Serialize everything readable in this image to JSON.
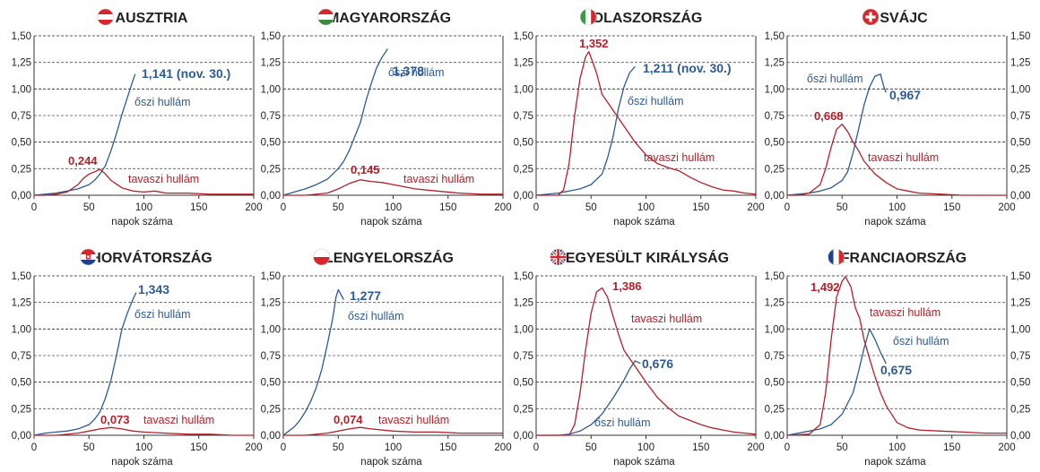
{
  "colors": {
    "autumn": "#2d5b94",
    "spring": "#b5202a",
    "grid": "#444444",
    "axis": "#333333"
  },
  "common": {
    "xlabel": "napok száma",
    "y_ticks": [
      "0,00",
      "0,25",
      "0,50",
      "0,75",
      "1,00",
      "1,25",
      "1,50"
    ],
    "x_ticks": [
      "0",
      "50",
      "100",
      "150",
      "200"
    ],
    "xlim": [
      0,
      200
    ],
    "ylim": [
      0,
      1.5
    ],
    "grid": "horizontal dashed"
  },
  "chart_data": [
    {
      "type": "line",
      "title": "AUSZTRIA",
      "flag_icon": "austria-flag-icon",
      "series": [
        {
          "name": "őszi hullám",
          "peak_label": "1,141 (nov. 30.)",
          "x": [
            0,
            10,
            20,
            30,
            40,
            50,
            55,
            60,
            65,
            70,
            75,
            80,
            85,
            90,
            92
          ],
          "y": [
            0.0,
            0.01,
            0.02,
            0.04,
            0.06,
            0.1,
            0.14,
            0.2,
            0.28,
            0.42,
            0.58,
            0.76,
            0.92,
            1.08,
            1.14
          ]
        },
        {
          "name": "tavaszi hullám",
          "peak_label": "0,244",
          "x": [
            0,
            10,
            20,
            30,
            40,
            45,
            50,
            55,
            60,
            65,
            70,
            80,
            90,
            100,
            110,
            120,
            140,
            160,
            180,
            200
          ],
          "y": [
            0.0,
            0.0,
            0.01,
            0.03,
            0.1,
            0.16,
            0.2,
            0.22,
            0.244,
            0.2,
            0.14,
            0.07,
            0.04,
            0.03,
            0.04,
            0.02,
            0.02,
            0.01,
            0.01,
            0.01
          ]
        }
      ]
    },
    {
      "type": "line",
      "title": "MAGYARORSZÁG",
      "flag_icon": "hungary-flag-icon",
      "series": [
        {
          "name": "őszi hullám",
          "peak_label": "1,378",
          "x": [
            0,
            10,
            20,
            30,
            40,
            50,
            55,
            60,
            65,
            70,
            75,
            80,
            85,
            90,
            95
          ],
          "y": [
            0.0,
            0.03,
            0.06,
            0.1,
            0.15,
            0.25,
            0.32,
            0.42,
            0.55,
            0.68,
            0.88,
            1.05,
            1.2,
            1.3,
            1.378
          ]
        },
        {
          "name": "tavaszi hullám",
          "peak_label": "0,145",
          "x": [
            0,
            20,
            40,
            50,
            60,
            70,
            80,
            90,
            100,
            110,
            120,
            140,
            160,
            180,
            200
          ],
          "y": [
            0.0,
            0.0,
            0.02,
            0.06,
            0.11,
            0.145,
            0.13,
            0.12,
            0.1,
            0.08,
            0.06,
            0.04,
            0.02,
            0.01,
            0.01
          ]
        }
      ]
    },
    {
      "type": "line",
      "title": "OLASZORSZÁG",
      "flag_icon": "italy-flag-icon",
      "series": [
        {
          "name": "őszi hullám",
          "peak_label": "1,211 (nov. 30.)",
          "x": [
            0,
            20,
            30,
            40,
            50,
            60,
            65,
            70,
            75,
            80,
            85,
            90
          ],
          "y": [
            0.0,
            0.02,
            0.04,
            0.06,
            0.1,
            0.2,
            0.35,
            0.55,
            0.82,
            1.02,
            1.15,
            1.211
          ]
        },
        {
          "name": "tavaszi hullám",
          "peak_label": "1,352",
          "x": [
            0,
            20,
            25,
            30,
            35,
            40,
            45,
            48,
            55,
            60,
            70,
            80,
            90,
            100,
            110,
            120,
            130,
            140,
            150,
            160,
            170,
            180,
            190,
            200
          ],
          "y": [
            0.0,
            0.0,
            0.05,
            0.3,
            0.75,
            1.1,
            1.3,
            1.352,
            1.15,
            0.95,
            0.8,
            0.65,
            0.5,
            0.38,
            0.3,
            0.26,
            0.23,
            0.17,
            0.12,
            0.08,
            0.05,
            0.04,
            0.02,
            0.01
          ]
        }
      ]
    },
    {
      "type": "line",
      "title": "SVÁJC",
      "flag_icon": "switzerland-flag-icon",
      "series": [
        {
          "name": "őszi hullám",
          "peak_label": "0,967",
          "x": [
            0,
            10,
            20,
            30,
            40,
            50,
            55,
            60,
            65,
            70,
            75,
            80,
            85,
            88,
            90
          ],
          "y": [
            0.0,
            0.01,
            0.02,
            0.04,
            0.07,
            0.14,
            0.22,
            0.4,
            0.62,
            0.85,
            1.02,
            1.12,
            1.14,
            1.02,
            0.967
          ]
        },
        {
          "name": "tavaszi hullám",
          "peak_label": "0,668",
          "x": [
            0,
            10,
            20,
            30,
            35,
            40,
            45,
            50,
            55,
            60,
            65,
            70,
            80,
            90,
            100,
            110,
            120,
            140,
            160,
            200
          ],
          "y": [
            0.0,
            0.0,
            0.02,
            0.1,
            0.25,
            0.45,
            0.62,
            0.668,
            0.6,
            0.5,
            0.42,
            0.32,
            0.2,
            0.12,
            0.06,
            0.04,
            0.02,
            0.01,
            0.0,
            0.0
          ]
        }
      ]
    },
    {
      "type": "line",
      "title": "HORVÁTORSZÁG",
      "flag_icon": "croatia-flag-icon",
      "series": [
        {
          "name": "őszi hullám",
          "peak_label": "1,343",
          "x": [
            0,
            10,
            20,
            30,
            40,
            50,
            55,
            60,
            65,
            70,
            75,
            80,
            85,
            90,
            93
          ],
          "y": [
            0.0,
            0.02,
            0.03,
            0.04,
            0.06,
            0.1,
            0.15,
            0.22,
            0.35,
            0.52,
            0.75,
            1.0,
            1.15,
            1.28,
            1.343
          ]
        },
        {
          "name": "tavaszi hullám",
          "peak_label": "0,073",
          "x": [
            0,
            20,
            40,
            50,
            60,
            70,
            80,
            90,
            100,
            120,
            140,
            160,
            180,
            200
          ],
          "y": [
            0.0,
            0.0,
            0.02,
            0.04,
            0.06,
            0.073,
            0.06,
            0.04,
            0.03,
            0.02,
            0.01,
            0.01,
            0.0,
            0.0
          ]
        }
      ]
    },
    {
      "type": "line",
      "title": "LENGYELORSZÁG",
      "flag_icon": "poland-flag-icon",
      "series": [
        {
          "name": "őszi hullám",
          "peak_label": "1,277",
          "x": [
            0,
            5,
            10,
            15,
            20,
            25,
            30,
            35,
            40,
            45,
            48,
            50,
            55
          ],
          "y": [
            0.0,
            0.04,
            0.08,
            0.14,
            0.22,
            0.32,
            0.45,
            0.62,
            0.85,
            1.1,
            1.3,
            1.37,
            1.277
          ]
        },
        {
          "name": "tavaszi hullám",
          "peak_label": "0,074",
          "x": [
            0,
            20,
            40,
            50,
            60,
            70,
            80,
            100,
            120,
            140,
            160,
            180,
            200
          ],
          "y": [
            0.0,
            0.0,
            0.02,
            0.04,
            0.06,
            0.074,
            0.06,
            0.04,
            0.03,
            0.03,
            0.02,
            0.02,
            0.02
          ]
        }
      ]
    },
    {
      "type": "line",
      "title": "EGYESÜLT KIRÁLYSÁG",
      "flag_icon": "uk-flag-icon",
      "series": [
        {
          "name": "őszi hullám",
          "peak_label": "0,676",
          "x": [
            0,
            20,
            30,
            40,
            50,
            60,
            70,
            80,
            85,
            90,
            95
          ],
          "y": [
            0.0,
            0.0,
            0.01,
            0.04,
            0.1,
            0.2,
            0.35,
            0.52,
            0.62,
            0.7,
            0.676
          ]
        },
        {
          "name": "tavaszi hullám",
          "peak_label": "1,386",
          "x": [
            0,
            30,
            35,
            40,
            45,
            50,
            55,
            60,
            65,
            70,
            75,
            80,
            90,
            100,
            110,
            120,
            130,
            140,
            150,
            160,
            170,
            180,
            190,
            200
          ],
          "y": [
            0.0,
            0.0,
            0.1,
            0.4,
            0.8,
            1.15,
            1.35,
            1.386,
            1.3,
            1.12,
            0.95,
            0.8,
            0.65,
            0.5,
            0.36,
            0.26,
            0.18,
            0.14,
            0.1,
            0.07,
            0.05,
            0.03,
            0.02,
            0.01
          ]
        }
      ]
    },
    {
      "type": "line",
      "title": "FRANCIAORSZÁG",
      "flag_icon": "france-flag-icon",
      "series": [
        {
          "name": "őszi hullám",
          "peak_label": "0,675",
          "x": [
            0,
            10,
            20,
            30,
            40,
            50,
            60,
            65,
            70,
            75,
            80,
            85,
            90
          ],
          "y": [
            0.0,
            0.02,
            0.04,
            0.06,
            0.1,
            0.2,
            0.4,
            0.6,
            0.82,
            1.0,
            0.9,
            0.78,
            0.675
          ]
        },
        {
          "name": "tavaszi hullám",
          "peak_label": "1,492",
          "x": [
            0,
            20,
            30,
            35,
            40,
            45,
            50,
            53,
            58,
            62,
            66,
            70,
            75,
            80,
            85,
            90,
            95,
            100,
            110,
            120,
            140,
            160,
            180,
            200
          ],
          "y": [
            0.0,
            0.01,
            0.1,
            0.4,
            0.9,
            1.3,
            1.45,
            1.492,
            1.4,
            1.2,
            1.1,
            0.9,
            0.72,
            0.55,
            0.4,
            0.28,
            0.2,
            0.12,
            0.07,
            0.05,
            0.04,
            0.03,
            0.02,
            0.02
          ]
        }
      ]
    }
  ]
}
